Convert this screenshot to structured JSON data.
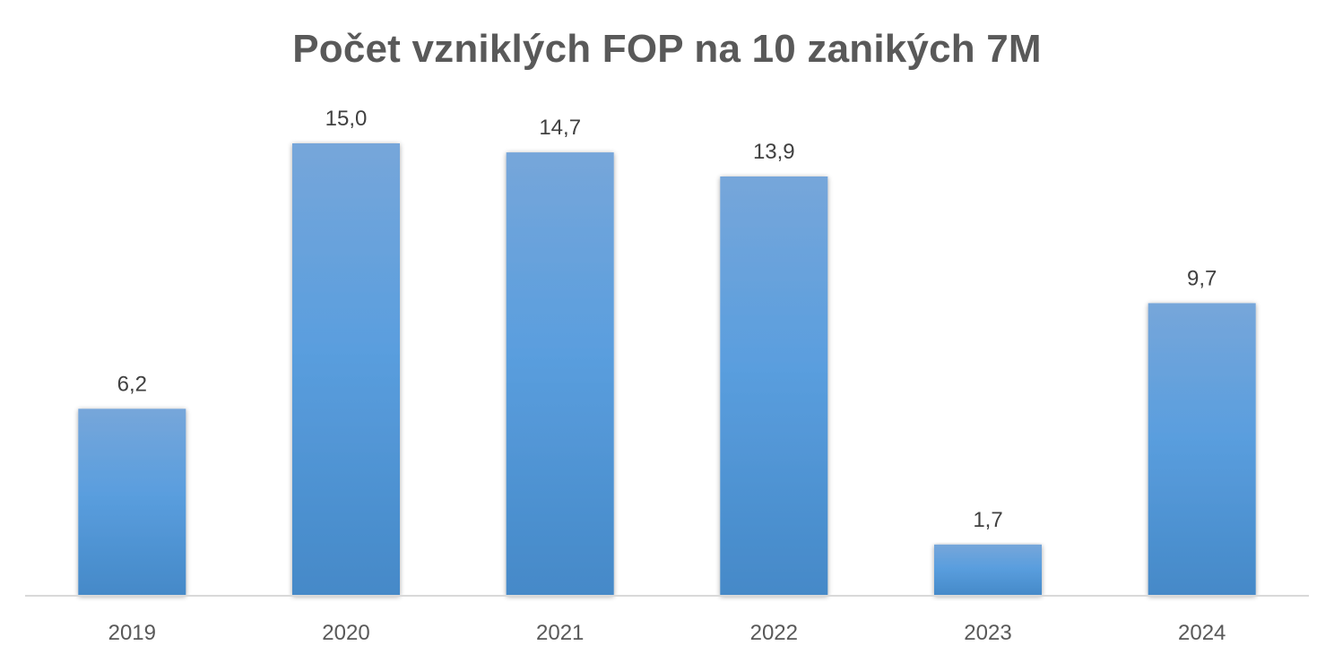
{
  "chart_data": {
    "type": "bar",
    "title": "Počet vzniklých FOP na 10 zanikých 7M",
    "xlabel": "",
    "ylabel": "",
    "categories": [
      "2019",
      "2020",
      "2021",
      "2022",
      "2023",
      "2024"
    ],
    "values": [
      6.2,
      15.0,
      14.7,
      13.9,
      1.7,
      9.7
    ],
    "data_labels": [
      "6,2",
      "15,0",
      "14,7",
      "13,9",
      "1,7",
      "9,7"
    ],
    "ylim": [
      0,
      15
    ],
    "grid": false,
    "legend": "none",
    "colors": {
      "bar_top": "#76A6DA",
      "bar_mid": "#5A9EDE",
      "bar_bottom": "#4589C8",
      "axis": "#D9D9D9",
      "title": "#595959"
    }
  }
}
